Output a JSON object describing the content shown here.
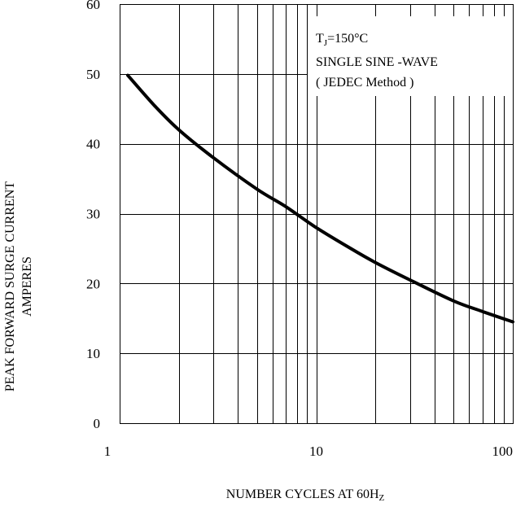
{
  "chart_data": {
    "type": "line",
    "title": "",
    "xlabel_parts": [
      "NUMBER CYCLES AT 60H",
      "Z"
    ],
    "ylabel_lines": [
      "PEAK FORWARD SURGE CURRENT",
      "AMPERES"
    ],
    "x_scale": "log",
    "xlim": [
      1,
      100
    ],
    "ylim": [
      0,
      60
    ],
    "x_ticks": [
      1,
      10,
      100
    ],
    "x_tick_labels": [
      "1",
      "10",
      "100"
    ],
    "y_ticks": [
      0,
      10,
      20,
      30,
      40,
      50,
      60
    ],
    "y_tick_labels": [
      "0",
      "10",
      "20",
      "30",
      "40",
      "50",
      "60"
    ],
    "grid": true,
    "annotation": {
      "line1_parts": [
        "T",
        "J",
        "=150°C"
      ],
      "line2": "SINGLE SINE -WAVE",
      "line3": "( JEDEC Method )"
    },
    "series": [
      {
        "x": [
          1.1,
          1.5,
          2,
          3,
          5,
          7,
          10,
          15,
          20,
          30,
          50,
          70,
          100
        ],
        "y": [
          49.8,
          45.5,
          42,
          38,
          33.5,
          31,
          28,
          25,
          23,
          20.5,
          17.5,
          16,
          14.5
        ]
      }
    ]
  }
}
